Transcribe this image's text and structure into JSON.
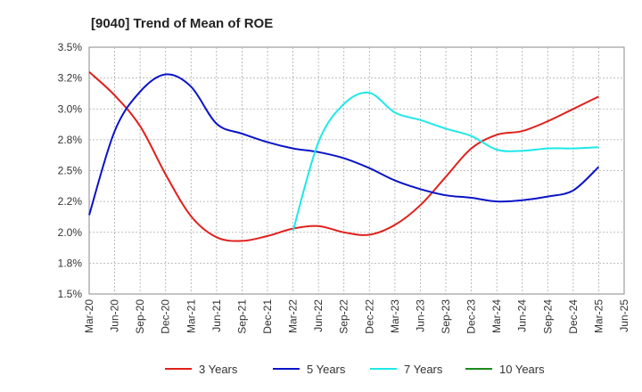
{
  "chart_data": {
    "type": "line",
    "title": "[9040]  Trend of Mean of ROE",
    "x_ticks": [
      "Mar-20",
      "Jun-20",
      "Sep-20",
      "Dec-20",
      "Mar-21",
      "Jun-21",
      "Sep-21",
      "Dec-21",
      "Mar-22",
      "Jun-22",
      "Sep-22",
      "Dec-22",
      "Mar-23",
      "Jun-23",
      "Sep-23",
      "Dec-23",
      "Mar-24",
      "Jun-24",
      "Sep-24",
      "Dec-24",
      "Mar-25",
      "Jun-25"
    ],
    "y_ticks": [
      "1.5%",
      "1.8%",
      "2.0%",
      "2.2%",
      "2.5%",
      "2.8%",
      "3.0%",
      "3.2%",
      "3.5%"
    ],
    "ylim": [
      1.5,
      3.5
    ],
    "grid": true,
    "legend_position": "bottom",
    "series": [
      {
        "name": "3 Years",
        "color": "#e0201b",
        "points": [
          {
            "x": "Mar-20",
            "y": 3.3
          },
          {
            "x": "Jun-20",
            "y": 3.11
          },
          {
            "x": "Sep-20",
            "y": 2.86
          },
          {
            "x": "Dec-20",
            "y": 2.47
          },
          {
            "x": "Mar-21",
            "y": 2.13
          },
          {
            "x": "Jun-21",
            "y": 1.96
          },
          {
            "x": "Sep-21",
            "y": 1.93
          },
          {
            "x": "Dec-21",
            "y": 1.97
          },
          {
            "x": "Mar-22",
            "y": 2.03
          },
          {
            "x": "Jun-22",
            "y": 2.05
          },
          {
            "x": "Sep-22",
            "y": 2.0
          },
          {
            "x": "Dec-22",
            "y": 1.98
          },
          {
            "x": "Mar-23",
            "y": 2.06
          },
          {
            "x": "Jun-23",
            "y": 2.22
          },
          {
            "x": "Sep-23",
            "y": 2.45
          },
          {
            "x": "Dec-23",
            "y": 2.68
          },
          {
            "x": "Mar-24",
            "y": 2.79
          },
          {
            "x": "Jun-24",
            "y": 2.82
          },
          {
            "x": "Sep-24",
            "y": 2.9
          },
          {
            "x": "Dec-24",
            "y": 3.0
          },
          {
            "x": "Mar-25",
            "y": 3.1
          }
        ]
      },
      {
        "name": "5 Years",
        "color": "#0a14c8",
        "points": [
          {
            "x": "Mar-20",
            "y": 2.14
          },
          {
            "x": "Jun-20",
            "y": 2.82
          },
          {
            "x": "Sep-20",
            "y": 3.14
          },
          {
            "x": "Dec-20",
            "y": 3.28
          },
          {
            "x": "Mar-21",
            "y": 3.18
          },
          {
            "x": "Jun-21",
            "y": 2.88
          },
          {
            "x": "Sep-21",
            "y": 2.8
          },
          {
            "x": "Dec-21",
            "y": 2.73
          },
          {
            "x": "Mar-22",
            "y": 2.68
          },
          {
            "x": "Jun-22",
            "y": 2.65
          },
          {
            "x": "Sep-22",
            "y": 2.6
          },
          {
            "x": "Dec-22",
            "y": 2.52
          },
          {
            "x": "Mar-23",
            "y": 2.42
          },
          {
            "x": "Jun-23",
            "y": 2.35
          },
          {
            "x": "Sep-23",
            "y": 2.3
          },
          {
            "x": "Dec-23",
            "y": 2.28
          },
          {
            "x": "Mar-24",
            "y": 2.25
          },
          {
            "x": "Jun-24",
            "y": 2.26
          },
          {
            "x": "Sep-24",
            "y": 2.29
          },
          {
            "x": "Dec-24",
            "y": 2.34
          },
          {
            "x": "Mar-25",
            "y": 2.53
          }
        ]
      },
      {
        "name": "7 Years",
        "color": "#1ee8e8",
        "points": [
          {
            "x": "Mar-22",
            "y": 2.01
          },
          {
            "x": "Jun-22",
            "y": 2.73
          },
          {
            "x": "Sep-22",
            "y": 3.04
          },
          {
            "x": "Dec-22",
            "y": 3.13
          },
          {
            "x": "Mar-23",
            "y": 2.97
          },
          {
            "x": "Jun-23",
            "y": 2.91
          },
          {
            "x": "Sep-23",
            "y": 2.84
          },
          {
            "x": "Dec-23",
            "y": 2.78
          },
          {
            "x": "Mar-24",
            "y": 2.67
          },
          {
            "x": "Jun-24",
            "y": 2.66
          },
          {
            "x": "Sep-24",
            "y": 2.68
          },
          {
            "x": "Dec-24",
            "y": 2.68
          },
          {
            "x": "Mar-25",
            "y": 2.69
          }
        ]
      },
      {
        "name": "10 Years",
        "color": "#1a8a1a",
        "points": []
      }
    ]
  }
}
